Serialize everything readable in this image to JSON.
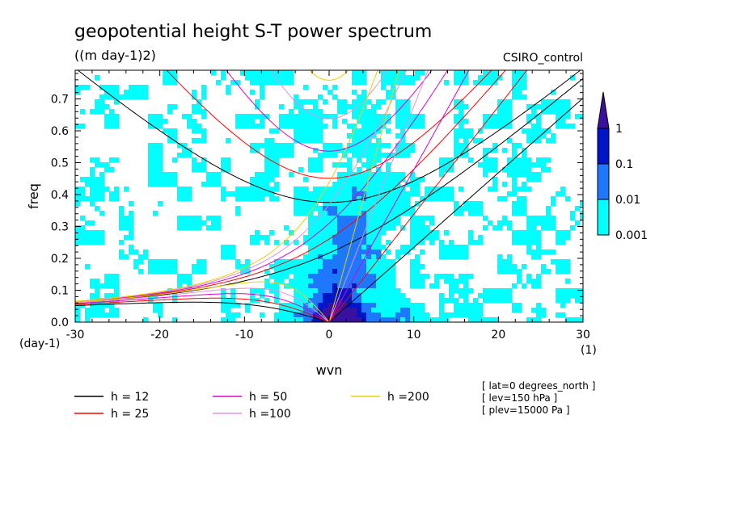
{
  "chart_data": {
    "type": "heatmap",
    "title": "geopotential height S-T power spectrum",
    "subtitle": "((m day-1)2)",
    "model_label": "CSIRO_control",
    "xlabel": "wvn",
    "ylabel": "freq",
    "x_unit_label": "(1)",
    "y_unit_label": "(day-1)",
    "xlim": [
      -30,
      30
    ],
    "ylim": [
      0,
      0.79
    ],
    "x_ticks": [
      -30,
      -20,
      -10,
      0,
      10,
      20,
      30
    ],
    "y_ticks": [
      0.0,
      0.1,
      0.2,
      0.3,
      0.4,
      0.5,
      0.6,
      0.7
    ],
    "x_tick_labels": [
      "-30",
      "-20",
      "-10",
      "0",
      "10",
      "20",
      "30"
    ],
    "y_tick_labels": [
      "0.0",
      "0.1",
      "0.2",
      "0.3",
      "0.4",
      "0.5",
      "0.6",
      "0.7"
    ],
    "colorbar": {
      "levels": [
        0.001,
        0.01,
        0.1,
        1
      ],
      "labels": [
        "0.001",
        "0.01",
        "0.1",
        "1"
      ],
      "colors": [
        "#00ffff",
        "#1e78ff",
        "#0014c8",
        "#3a10a0"
      ]
    },
    "dispersion_curves": [
      {
        "label": "h = 12",
        "h": 12,
        "color": "#000000"
      },
      {
        "label": "h = 25",
        "h": 25,
        "color": "#ff0000"
      },
      {
        "label": "h = 50",
        "h": 50,
        "color": "#dd00cc"
      },
      {
        "label": "h =100",
        "h": 100,
        "color": "#e090e0"
      },
      {
        "label": "h =200",
        "h": 200,
        "color": "#e8d000"
      }
    ],
    "info_lines": [
      "[ lat=0 degrees_north ]",
      "[ lev=150 hPa ]",
      "[ plev=15000 Pa ]"
    ]
  }
}
